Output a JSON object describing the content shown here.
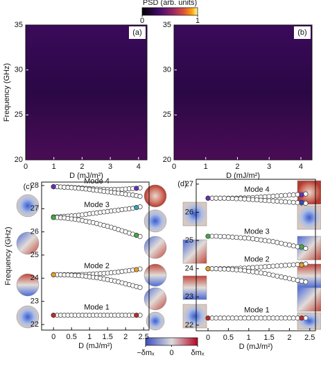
{
  "colorbars": [
    {
      "label": "PSD (arb. units)",
      "lim": [
        0,
        1
      ],
      "ticks": [
        0,
        1
      ]
    },
    {
      "lim": [
        -1,
        1
      ],
      "ticks": [
        {
          "value": -1,
          "label": "−δmₓ"
        },
        0,
        {
          "value": 1,
          "label": "δmₓ"
        }
      ]
    }
  ],
  "chart_data": [
    {
      "type": "heatmap",
      "panel_label": "(a)",
      "xlabel": "D (mJ/m²)",
      "ylabel": "Frequency (GHz)",
      "xlim": [
        0,
        4.3
      ],
      "ylim": [
        20,
        35
      ],
      "xticks": [
        0,
        1,
        2,
        3,
        4
      ],
      "yticks": [
        20,
        25,
        30,
        35
      ]
    },
    {
      "type": "heatmap",
      "panel_label": "(b)",
      "xlabel": "D (mJ/m²)",
      "xlim": [
        0,
        4.35
      ],
      "ylim": [
        20,
        35
      ],
      "xticks": [
        0,
        1,
        2,
        3,
        4
      ],
      "yticks": [
        20,
        25,
        30,
        35
      ]
    },
    {
      "type": "scatter",
      "panel_label": "(c)",
      "xlabel": "D (mJ/m²)",
      "ylabel": "Frequency (GHz)",
      "xlim": [
        -0.33,
        2.65
      ],
      "ylim": [
        21.76,
        28.15
      ],
      "xticks": [
        0,
        0.5,
        1,
        1.5,
        2,
        2.5
      ],
      "yticks": [
        22,
        23,
        24,
        25,
        26,
        27,
        28
      ],
      "x": [
        0,
        0.1,
        0.2,
        0.3,
        0.4,
        0.5,
        0.6,
        0.7,
        0.8,
        0.9,
        1,
        1.1,
        1.2,
        1.3,
        1.4,
        1.5,
        1.6,
        1.7,
        1.8,
        1.9,
        2,
        2.1,
        2.2,
        2.3,
        2.4
      ],
      "series": [
        {
          "name": "Mode 1",
          "values": [
            22.4,
            22.4,
            22.4,
            22.4,
            22.4,
            22.4,
            22.4,
            22.4,
            22.4,
            22.4,
            22.4,
            22.4,
            22.4,
            22.4,
            22.4,
            22.4,
            22.4,
            22.4,
            22.4,
            22.4,
            22.4,
            22.4,
            22.4,
            22.4,
            22.4
          ]
        },
        {
          "name": "Mode 2",
          "values": [
            24.15,
            24.15,
            24.15,
            24.15,
            24.15,
            24.15,
            24.15,
            24.15,
            24.16,
            24.16,
            24.17,
            24.18,
            24.19,
            24.2,
            24.21,
            24.22,
            24.24,
            24.25,
            24.27,
            24.29,
            24.31,
            24.33,
            24.35,
            24.37,
            24.4
          ]
        },
        {
          "values": [
            24.15,
            24.15,
            24.15,
            24.14,
            24.14,
            24.13,
            24.12,
            24.11,
            24.1,
            24.08,
            24.06,
            24.04,
            24.02,
            24.0,
            23.97,
            23.94,
            23.91,
            23.88,
            23.84,
            23.8,
            23.76,
            23.72,
            23.68,
            23.64,
            23.6
          ]
        },
        {
          "name": "Mode 3",
          "values": [
            26.65,
            26.65,
            26.66,
            26.67,
            26.68,
            26.69,
            26.7,
            26.72,
            26.74,
            26.76,
            26.78,
            26.8,
            26.82,
            26.84,
            26.86,
            26.88,
            26.9,
            26.92,
            26.94,
            26.96,
            26.98,
            27.0,
            27.02,
            27.05,
            27.08
          ]
        },
        {
          "values": [
            26.62,
            26.62,
            26.61,
            26.6,
            26.58,
            26.56,
            26.54,
            26.52,
            26.49,
            26.46,
            26.43,
            26.4,
            26.36,
            26.32,
            26.28,
            26.24,
            26.2,
            26.15,
            26.1,
            26.05,
            26.0,
            25.95,
            25.9,
            25.85,
            25.8
          ]
        },
        {
          "name": "Mode 4",
          "values": [
            27.95,
            27.95,
            27.94,
            27.93,
            27.93,
            27.92,
            27.91,
            27.9,
            27.89,
            27.88,
            27.87,
            27.86,
            27.85,
            27.84,
            27.84,
            27.83,
            27.83,
            27.83,
            27.83,
            27.84,
            27.85,
            27.86,
            27.87,
            27.88,
            27.9
          ]
        },
        {
          "values": [
            27.95,
            27.95,
            27.94,
            27.93,
            27.92,
            27.91,
            27.9,
            27.88,
            27.87,
            27.85,
            27.83,
            27.81,
            27.79,
            27.77,
            27.75,
            27.73,
            27.71,
            27.69,
            27.67,
            27.65,
            27.63,
            27.61,
            27.59,
            27.56,
            27.53
          ]
        },
        {
          "color": "#c62828",
          "x": [
            0,
            2.3
          ],
          "values": [
            22.4,
            22.4
          ]
        },
        {
          "color": "#f0a020",
          "x": [
            0,
            2.3
          ],
          "values": [
            24.15,
            24.37
          ]
        },
        {
          "color": "#3fae3f",
          "x": [
            0,
            2.3
          ],
          "values": [
            26.62,
            25.85
          ]
        },
        {
          "color": "#2aa8b8",
          "x": [
            2.3
          ],
          "values": [
            27.05
          ]
        },
        {
          "color": "#6a2bc2",
          "x": [
            0,
            2.3
          ],
          "values": [
            27.95,
            27.88
          ]
        }
      ]
    },
    {
      "type": "scatter",
      "panel_label": "(d)",
      "xlabel": "D (mJ/m²)",
      "xlim": [
        -0.29,
        2.64
      ],
      "ylim": [
        21.8,
        27.17
      ],
      "xticks": [
        0,
        0.5,
        1,
        1.5,
        2,
        2.5
      ],
      "yticks": [
        22,
        23,
        24,
        25,
        26,
        27
      ],
      "x": [
        0,
        0.1,
        0.2,
        0.3,
        0.4,
        0.5,
        0.6,
        0.7,
        0.8,
        0.9,
        1,
        1.1,
        1.2,
        1.3,
        1.4,
        1.5,
        1.6,
        1.7,
        1.8,
        1.9,
        2,
        2.1,
        2.2,
        2.3,
        2.4
      ],
      "series": [
        {
          "name": "Mode 1",
          "values": [
            22.25,
            22.25,
            22.25,
            22.25,
            22.25,
            22.25,
            22.25,
            22.25,
            22.25,
            22.25,
            22.25,
            22.25,
            22.25,
            22.25,
            22.25,
            22.25,
            22.25,
            22.25,
            22.25,
            22.25,
            22.25,
            22.25,
            22.25,
            22.25,
            22.25
          ]
        },
        {
          "name": "Mode 2",
          "values": [
            24.0,
            24.0,
            24.0,
            24.0,
            24.0,
            24.0,
            24.01,
            24.01,
            24.02,
            24.02,
            24.03,
            24.04,
            24.05,
            24.06,
            24.07,
            24.08,
            24.09,
            24.1,
            24.11,
            24.12,
            24.13,
            24.14,
            24.15,
            24.16,
            24.17
          ]
        },
        {
          "values": [
            24.0,
            24.0,
            24.0,
            23.99,
            23.99,
            23.98,
            23.97,
            23.96,
            23.95,
            23.93,
            23.91,
            23.89,
            23.87,
            23.85,
            23.83,
            23.8,
            23.77,
            23.74,
            23.71,
            23.68,
            23.65,
            23.62,
            23.59,
            23.56,
            23.53
          ]
        },
        {
          "name": "Mode 3",
          "values": [
            25.15,
            25.15,
            25.15,
            25.14,
            25.14,
            25.13,
            25.12,
            25.11,
            25.1,
            25.09,
            25.08,
            25.06,
            25.04,
            25.02,
            25.0,
            24.98,
            24.96,
            24.93,
            24.9,
            24.87,
            24.84,
            24.81,
            24.78,
            24.75,
            24.72
          ]
        },
        {
          "name": "Mode 4",
          "values": [
            26.5,
            26.5,
            26.5,
            26.5,
            26.5,
            26.5,
            26.5,
            26.5,
            26.51,
            26.51,
            26.52,
            26.52,
            26.53,
            26.54,
            26.55,
            26.56,
            26.57,
            26.58,
            26.59,
            26.6,
            26.61,
            26.62,
            26.63,
            26.64,
            26.65
          ]
        },
        {
          "values": [
            26.5,
            26.5,
            26.5,
            26.5,
            26.5,
            26.49,
            26.49,
            26.48,
            26.48,
            26.47,
            26.46,
            26.45,
            26.44,
            26.43,
            26.42,
            26.41,
            26.4,
            26.39,
            26.38,
            26.37,
            26.36,
            26.35,
            26.34,
            26.33,
            26.32
          ]
        },
        {
          "color": "#c62828",
          "x": [
            0,
            2.3
          ],
          "values": [
            22.25,
            22.25
          ]
        },
        {
          "color": "#f0a020",
          "x": [
            0,
            2.3
          ],
          "values": [
            24.0,
            24.13
          ]
        },
        {
          "color": "#3fae3f",
          "x": [
            0,
            2.3
          ],
          "values": [
            25.15,
            24.78
          ]
        },
        {
          "color": "#6a2bc2",
          "x": [
            0,
            2.3
          ],
          "values": [
            26.5,
            26.61
          ]
        },
        {
          "color": "#2a4fc8",
          "x": [
            2.3
          ],
          "values": [
            26.35
          ]
        }
      ]
    }
  ]
}
